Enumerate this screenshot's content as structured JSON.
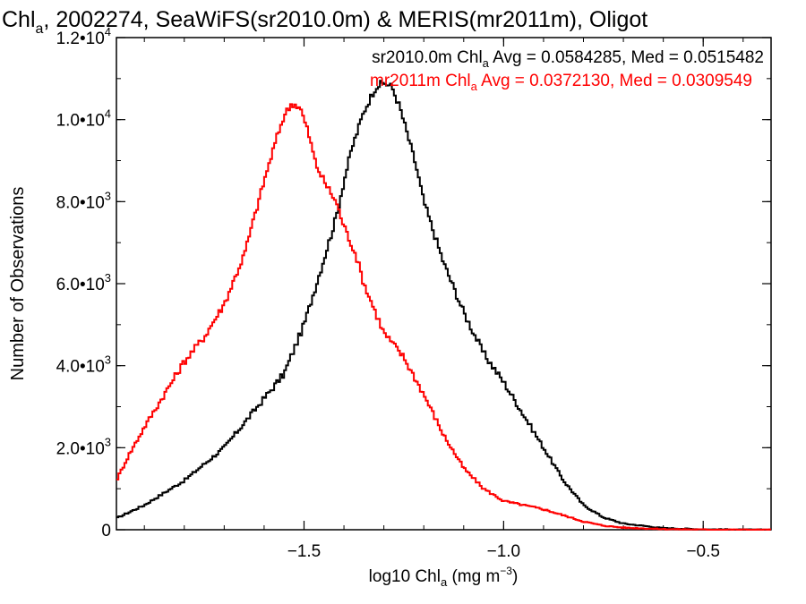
{
  "chart_data": {
    "type": "line",
    "step": true,
    "title": {
      "prefix": "Chl",
      "sub": "a",
      "rest": ", 2002274, SeaWiFS(sr2010.0m) & MERIS(mr2011m), Oligot"
    },
    "xlabel": {
      "prefix": "log10 Chl",
      "sub": "a",
      "mid": " (mg m",
      "sup": "−3",
      "suffix": ")"
    },
    "ylabel": "Number of Observations",
    "xlim": [
      -1.97,
      -0.33
    ],
    "ylim": [
      0,
      12000
    ],
    "x_ticks": [
      {
        "value": -1.5,
        "label": "−1.5"
      },
      {
        "value": -1.0,
        "label": "−1.0"
      },
      {
        "value": -0.5,
        "label": "−0.5"
      }
    ],
    "y_ticks": [
      {
        "value": 0,
        "mant": "0",
        "exp": ""
      },
      {
        "value": 2000,
        "mant": "2.0•10",
        "exp": "3"
      },
      {
        "value": 4000,
        "mant": "4.0•10",
        "exp": "3"
      },
      {
        "value": 6000,
        "mant": "6.0•10",
        "exp": "3"
      },
      {
        "value": 8000,
        "mant": "8.0•10",
        "exp": "3"
      },
      {
        "value": 10000,
        "mant": "1.0•10",
        "exp": "4"
      },
      {
        "value": 12000,
        "mant": "1.2•10",
        "exp": "4"
      }
    ],
    "legend_placement": "top-right",
    "grid": false,
    "series": [
      {
        "name": "sr2010.0m",
        "color": "#000000",
        "label": {
          "prefix": "sr2010.0m Chl",
          "sub": "a",
          "rest": " Avg = 0.0584285, Med = 0.0515482"
        },
        "x": [
          -1.97,
          -1.9,
          -1.8,
          -1.7,
          -1.6,
          -1.55,
          -1.5,
          -1.45,
          -1.42,
          -1.4,
          -1.38,
          -1.35,
          -1.32,
          -1.3,
          -1.28,
          -1.26,
          -1.24,
          -1.22,
          -1.2,
          -1.15,
          -1.1,
          -1.05,
          -1.0,
          -0.95,
          -0.9,
          -0.85,
          -0.8,
          -0.75,
          -0.7,
          -0.6,
          -0.5,
          -0.4,
          -0.33
        ],
        "y": [
          280,
          600,
          1200,
          2000,
          3200,
          3800,
          5000,
          6600,
          7600,
          8500,
          9300,
          10200,
          10800,
          10900,
          10800,
          10300,
          9600,
          8900,
          8000,
          6500,
          5300,
          4300,
          3600,
          2800,
          2000,
          1200,
          600,
          300,
          150,
          40,
          10,
          2,
          0
        ]
      },
      {
        "name": "mr2011m",
        "color": "#ff0000",
        "label": {
          "prefix": "mr2011m Chl",
          "sub": "a",
          "rest": " Avg = 0.0372130, Med = 0.0309549"
        },
        "x": [
          -1.97,
          -1.94,
          -1.9,
          -1.85,
          -1.8,
          -1.75,
          -1.7,
          -1.65,
          -1.6,
          -1.57,
          -1.55,
          -1.53,
          -1.51,
          -1.49,
          -1.47,
          -1.45,
          -1.42,
          -1.4,
          -1.37,
          -1.35,
          -1.3,
          -1.25,
          -1.2,
          -1.15,
          -1.1,
          -1.05,
          -1.0,
          -0.95,
          -0.9,
          -0.85,
          -0.8,
          -0.75,
          -0.7,
          -0.6,
          -0.5,
          -0.4,
          -0.33
        ],
        "y": [
          1200,
          1800,
          2500,
          3300,
          4100,
          4700,
          5500,
          6700,
          8500,
          9500,
          10100,
          10400,
          10300,
          9700,
          8900,
          8500,
          8000,
          7400,
          6700,
          6000,
          4800,
          4200,
          3300,
          2300,
          1500,
          1000,
          700,
          600,
          500,
          350,
          200,
          100,
          50,
          15,
          5,
          1,
          0
        ]
      }
    ]
  }
}
